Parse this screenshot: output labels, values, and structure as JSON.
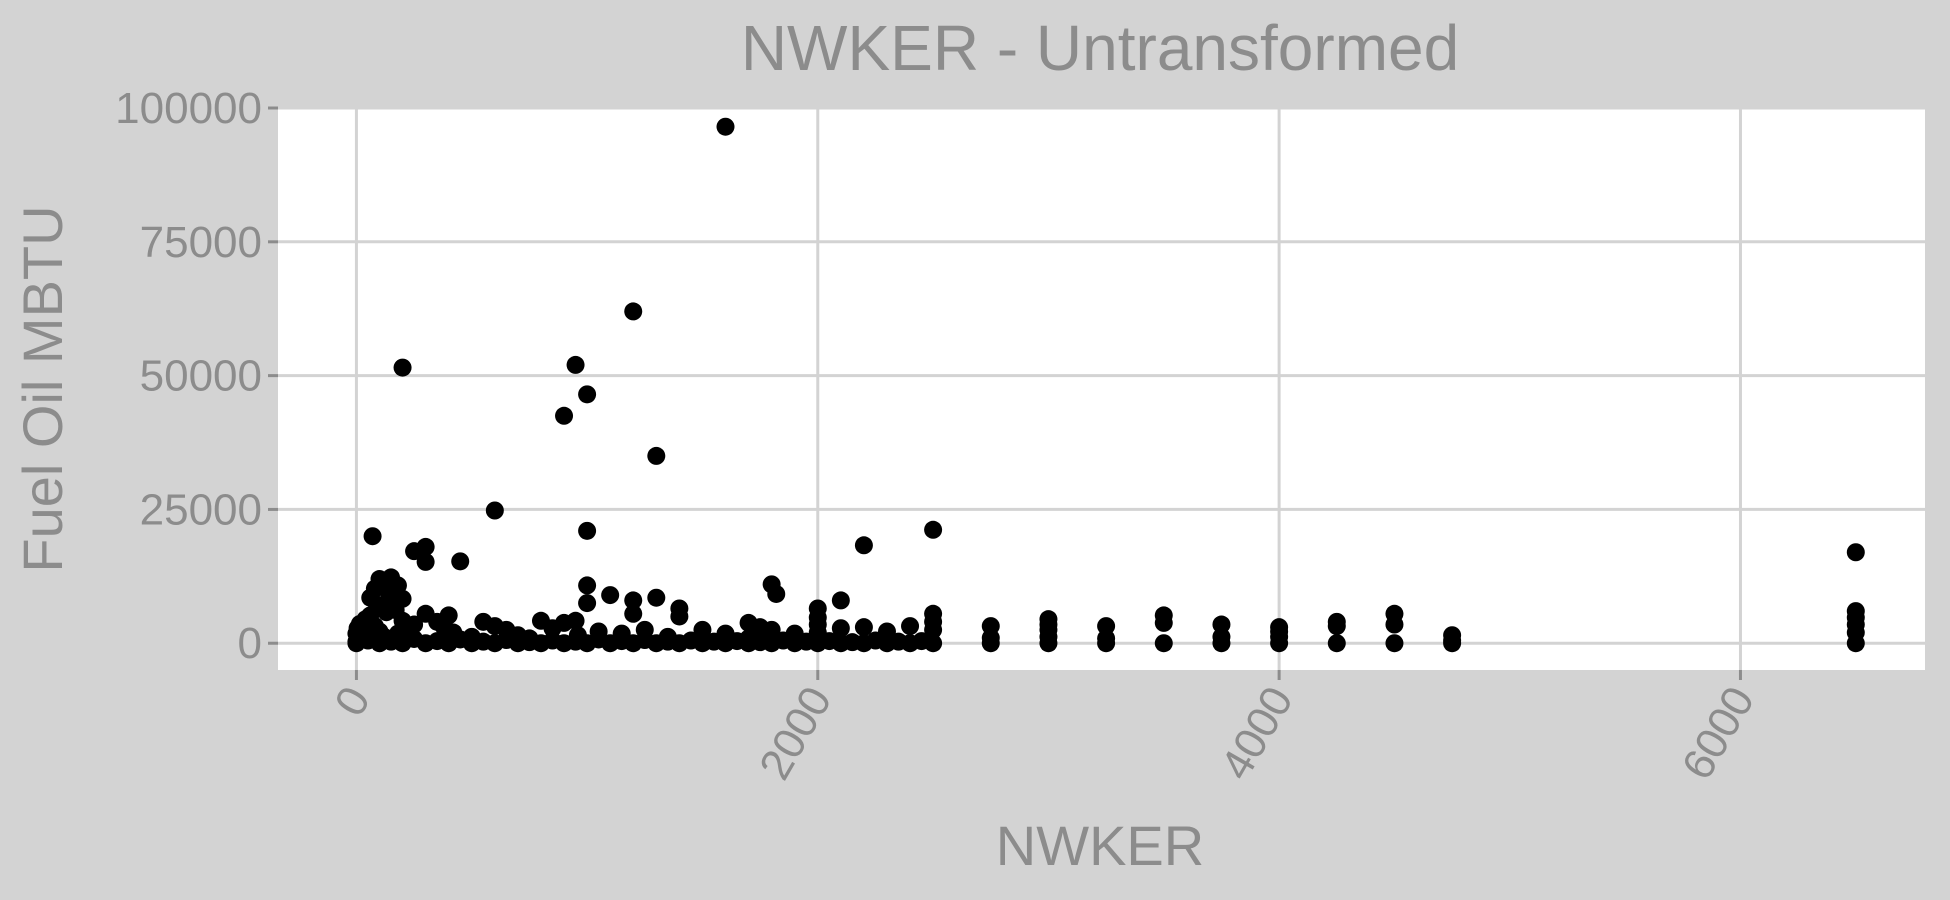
{
  "chart_data": {
    "type": "scatter",
    "title": "NWKER - Untransformed",
    "xlabel": "NWKER",
    "ylabel": "Fuel Oil MBTU",
    "xlim": [
      -340,
      6800
    ],
    "ylim": [
      -5000,
      100000
    ],
    "x_ticks": [
      0,
      2000,
      4000,
      6000
    ],
    "y_ticks": [
      0,
      25000,
      50000,
      75000,
      100000
    ],
    "x_tick_labels": [
      "0",
      "2000",
      "4000",
      "6000"
    ],
    "y_tick_labels": [
      "0",
      "25000",
      "50000",
      "75000",
      "100000"
    ],
    "grid": true,
    "legend": "none",
    "colors": {
      "background": "#d3d3d3",
      "panel": "#ffffff",
      "grid": "#d3d3d3",
      "point": "#000000",
      "text": "#8c8c8c"
    },
    "points": [
      [
        1600,
        96500
      ],
      [
        1200,
        62000
      ],
      [
        200,
        51500
      ],
      [
        950,
        52000
      ],
      [
        1000,
        46500
      ],
      [
        900,
        42500
      ],
      [
        1300,
        35000
      ],
      [
        600,
        24800
      ],
      [
        1000,
        21000
      ],
      [
        2500,
        21200
      ],
      [
        2200,
        18300
      ],
      [
        70,
        20000
      ],
      [
        300,
        18000
      ],
      [
        250,
        17200
      ],
      [
        300,
        15200
      ],
      [
        450,
        15300
      ],
      [
        6500,
        17000
      ],
      [
        1000,
        10800
      ],
      [
        1800,
        11000
      ],
      [
        1820,
        9200
      ],
      [
        1000,
        7500
      ],
      [
        1100,
        9000
      ],
      [
        2100,
        8000
      ],
      [
        1300,
        8500
      ],
      [
        1200,
        8000
      ],
      [
        1200,
        5500
      ],
      [
        1400,
        6500
      ],
      [
        1400,
        5000
      ],
      [
        80,
        10200
      ],
      [
        100,
        12000
      ],
      [
        120,
        11500
      ],
      [
        150,
        12300
      ],
      [
        180,
        10800
      ],
      [
        140,
        9500
      ],
      [
        60,
        8500
      ],
      [
        90,
        7200
      ],
      [
        110,
        6500
      ],
      [
        130,
        5800
      ],
      [
        170,
        6200
      ],
      [
        160,
        7800
      ],
      [
        200,
        8300
      ],
      [
        60,
        5200
      ],
      [
        50,
        3800
      ],
      [
        30,
        2500
      ],
      [
        20,
        1500
      ],
      [
        10,
        800
      ],
      [
        0,
        300
      ],
      [
        0,
        1800
      ],
      [
        5,
        2800
      ],
      [
        15,
        3600
      ],
      [
        40,
        4500
      ],
      [
        80,
        3200
      ],
      [
        100,
        2200
      ],
      [
        120,
        1200
      ],
      [
        150,
        600
      ],
      [
        180,
        1800
      ],
      [
        220,
        2800
      ],
      [
        250,
        3500
      ],
      [
        200,
        4200
      ],
      [
        300,
        5500
      ],
      [
        350,
        4000
      ],
      [
        400,
        5200
      ],
      [
        380,
        3000
      ],
      [
        420,
        2000
      ],
      [
        500,
        1200
      ],
      [
        550,
        4000
      ],
      [
        600,
        3200
      ],
      [
        650,
        2500
      ],
      [
        700,
        1500
      ],
      [
        750,
        900
      ],
      [
        800,
        4200
      ],
      [
        850,
        2800
      ],
      [
        900,
        3800
      ],
      [
        950,
        4200
      ],
      [
        960,
        1500
      ],
      [
        1050,
        2200
      ],
      [
        1150,
        1800
      ],
      [
        1250,
        2500
      ],
      [
        1350,
        1200
      ],
      [
        1500,
        2500
      ],
      [
        1600,
        1800
      ],
      [
        1700,
        3800
      ],
      [
        1750,
        3000
      ],
      [
        1800,
        2500
      ],
      [
        1700,
        900
      ],
      [
        1900,
        1800
      ],
      [
        2000,
        6500
      ],
      [
        2000,
        4800
      ],
      [
        2000,
        3500
      ],
      [
        2000,
        2000
      ],
      [
        2100,
        2800
      ],
      [
        2200,
        3000
      ],
      [
        2300,
        2200
      ],
      [
        2400,
        3200
      ],
      [
        2500,
        5500
      ],
      [
        2500,
        4000
      ],
      [
        2500,
        2500
      ],
      [
        2750,
        3200
      ],
      [
        2750,
        1000
      ],
      [
        3000,
        4500
      ],
      [
        3000,
        3500
      ],
      [
        3000,
        2500
      ],
      [
        3000,
        1200
      ],
      [
        3250,
        3200
      ],
      [
        3250,
        900
      ],
      [
        3500,
        5200
      ],
      [
        3500,
        3800
      ],
      [
        3750,
        3500
      ],
      [
        3750,
        1200
      ],
      [
        4000,
        3000
      ],
      [
        4000,
        2200
      ],
      [
        4000,
        1200
      ],
      [
        4250,
        4000
      ],
      [
        4250,
        3200
      ],
      [
        4500,
        5500
      ],
      [
        4500,
        3500
      ],
      [
        4750,
        1500
      ],
      [
        4750,
        500
      ],
      [
        6500,
        6000
      ],
      [
        6500,
        4800
      ],
      [
        6500,
        3500
      ],
      [
        6500,
        2000
      ],
      [
        0,
        0
      ],
      [
        100,
        0
      ],
      [
        200,
        0
      ],
      [
        300,
        0
      ],
      [
        400,
        0
      ],
      [
        500,
        0
      ],
      [
        600,
        0
      ],
      [
        700,
        0
      ],
      [
        800,
        0
      ],
      [
        900,
        0
      ],
      [
        1000,
        0
      ],
      [
        1100,
        0
      ],
      [
        1200,
        0
      ],
      [
        1300,
        0
      ],
      [
        1400,
        0
      ],
      [
        1500,
        0
      ],
      [
        1600,
        0
      ],
      [
        1700,
        0
      ],
      [
        1800,
        0
      ],
      [
        1900,
        0
      ],
      [
        2000,
        0
      ],
      [
        2100,
        0
      ],
      [
        2200,
        0
      ],
      [
        2300,
        0
      ],
      [
        2400,
        0
      ],
      [
        2500,
        0
      ],
      [
        2750,
        0
      ],
      [
        3000,
        0
      ],
      [
        3250,
        0
      ],
      [
        3500,
        0
      ],
      [
        3750,
        0
      ],
      [
        4000,
        0
      ],
      [
        4250,
        0
      ],
      [
        4500,
        0
      ],
      [
        4750,
        0
      ],
      [
        6500,
        0
      ],
      [
        50,
        500
      ],
      [
        150,
        300
      ],
      [
        250,
        800
      ],
      [
        350,
        400
      ],
      [
        450,
        700
      ],
      [
        550,
        300
      ],
      [
        650,
        600
      ],
      [
        750,
        200
      ],
      [
        850,
        500
      ],
      [
        950,
        300
      ],
      [
        1050,
        700
      ],
      [
        1150,
        400
      ],
      [
        1250,
        600
      ],
      [
        1350,
        300
      ],
      [
        1450,
        500
      ],
      [
        1550,
        300
      ],
      [
        1650,
        400
      ],
      [
        1750,
        200
      ],
      [
        1850,
        500
      ],
      [
        1950,
        300
      ],
      [
        2050,
        400
      ],
      [
        2150,
        200
      ],
      [
        2250,
        500
      ],
      [
        2350,
        300
      ],
      [
        2450,
        400
      ]
    ]
  }
}
